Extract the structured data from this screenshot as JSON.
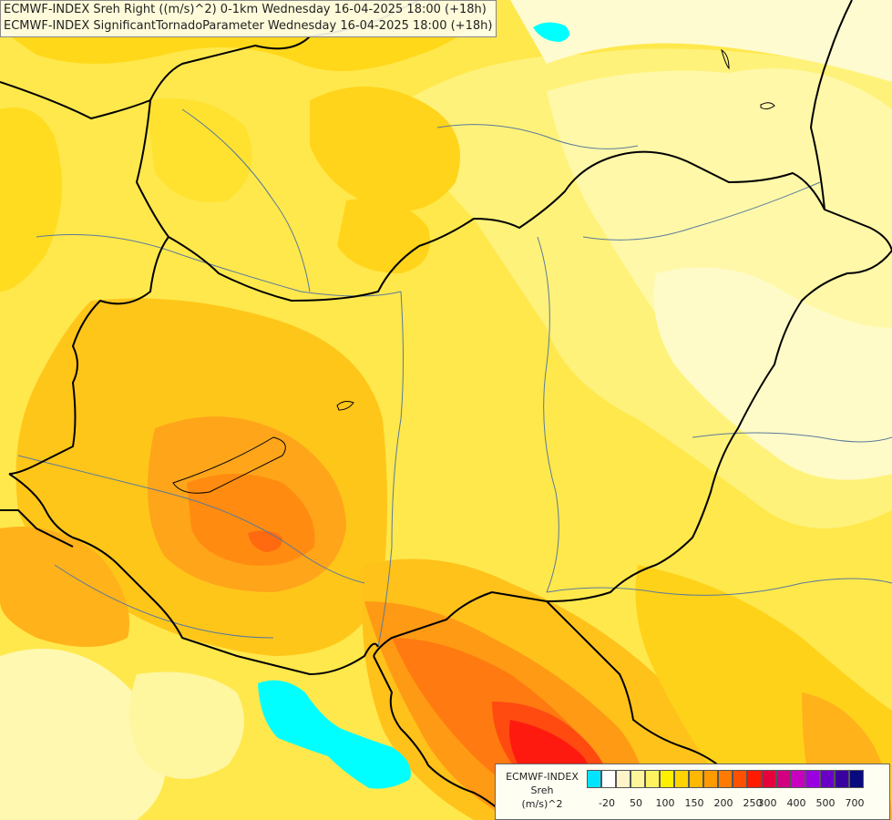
{
  "titles": {
    "line1": "ECMWF-INDEX Sreh Right ((m/s)^2) 0-1km Wednesday 16-04-2025 18:00 (+18h)",
    "line2": "ECMWF-INDEX SignificantTornadoParameter Wednesday 16-04-2025 18:00 (+18h)"
  },
  "legend": {
    "title_line1": "ECMWF-INDEX",
    "title_line2": "Sreh",
    "title_line3": "(m/s)^2",
    "colors": [
      "#00e5ff",
      "#ffffff",
      "#fff3c8",
      "#fff59a",
      "#fff260",
      "#fff000",
      "#ffd400",
      "#ffb800",
      "#ff9a00",
      "#ff7a00",
      "#ff5000",
      "#ff1a00",
      "#e6003c",
      "#d20080",
      "#c800c0",
      "#9a00e0",
      "#6a00c8",
      "#3a00a0",
      "#0a0a80"
    ],
    "ticks": [
      "-20",
      "50",
      "100",
      "150",
      "200",
      "250",
      "300",
      "400",
      "500",
      "700"
    ]
  },
  "colors": {
    "background": "#ffe64a",
    "lake": "#00ffff",
    "border": "#000000",
    "river": "#5a7a9a"
  }
}
